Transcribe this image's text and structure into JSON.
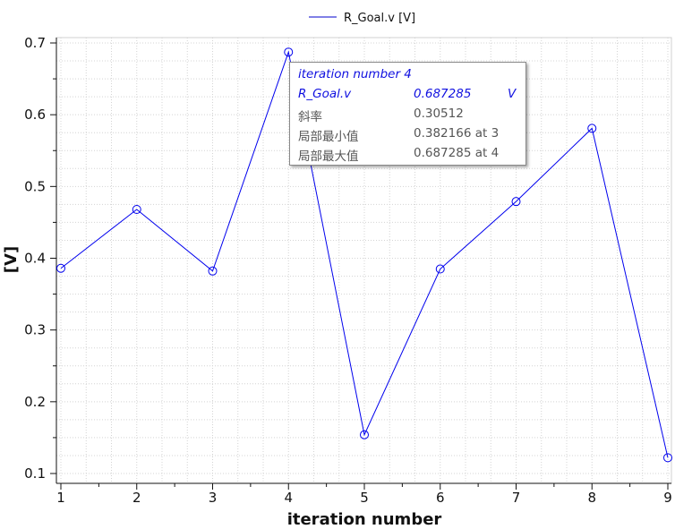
{
  "chart_data": {
    "type": "line",
    "title": "",
    "legend": {
      "label": "R_Goal.v [V]",
      "placement": "top-center"
    },
    "xlabel": "iteration number",
    "ylabel": "[V]",
    "xlim": [
      1,
      9
    ],
    "ylim": [
      0.1,
      0.7
    ],
    "xticks": [
      "1",
      "2",
      "3",
      "4",
      "5",
      "6",
      "7",
      "8",
      "9"
    ],
    "yticks": [
      "0.1",
      "0.2",
      "0.3",
      "0.4",
      "0.5",
      "0.6",
      "0.7"
    ],
    "grid": true,
    "series": [
      {
        "name": "R_Goal.v",
        "color": "#0000ee",
        "marker": "circle-open",
        "x": [
          1,
          2,
          3,
          4,
          5,
          6,
          7,
          8,
          9
        ],
        "values": [
          0.386,
          0.468,
          0.382166,
          0.687285,
          0.154,
          0.385,
          0.479,
          0.581,
          0.122
        ]
      }
    ]
  },
  "tooltip": {
    "title": "iteration number 4",
    "series_name": "R_Goal.v",
    "series_value": "0.687285",
    "series_unit": "V",
    "rows": [
      {
        "label": "斜率",
        "value": "0.30512"
      },
      {
        "label": "局部最小值",
        "value": "0.382166 at 3"
      },
      {
        "label": "局部最大值",
        "value": "0.687285 at 4"
      }
    ]
  }
}
